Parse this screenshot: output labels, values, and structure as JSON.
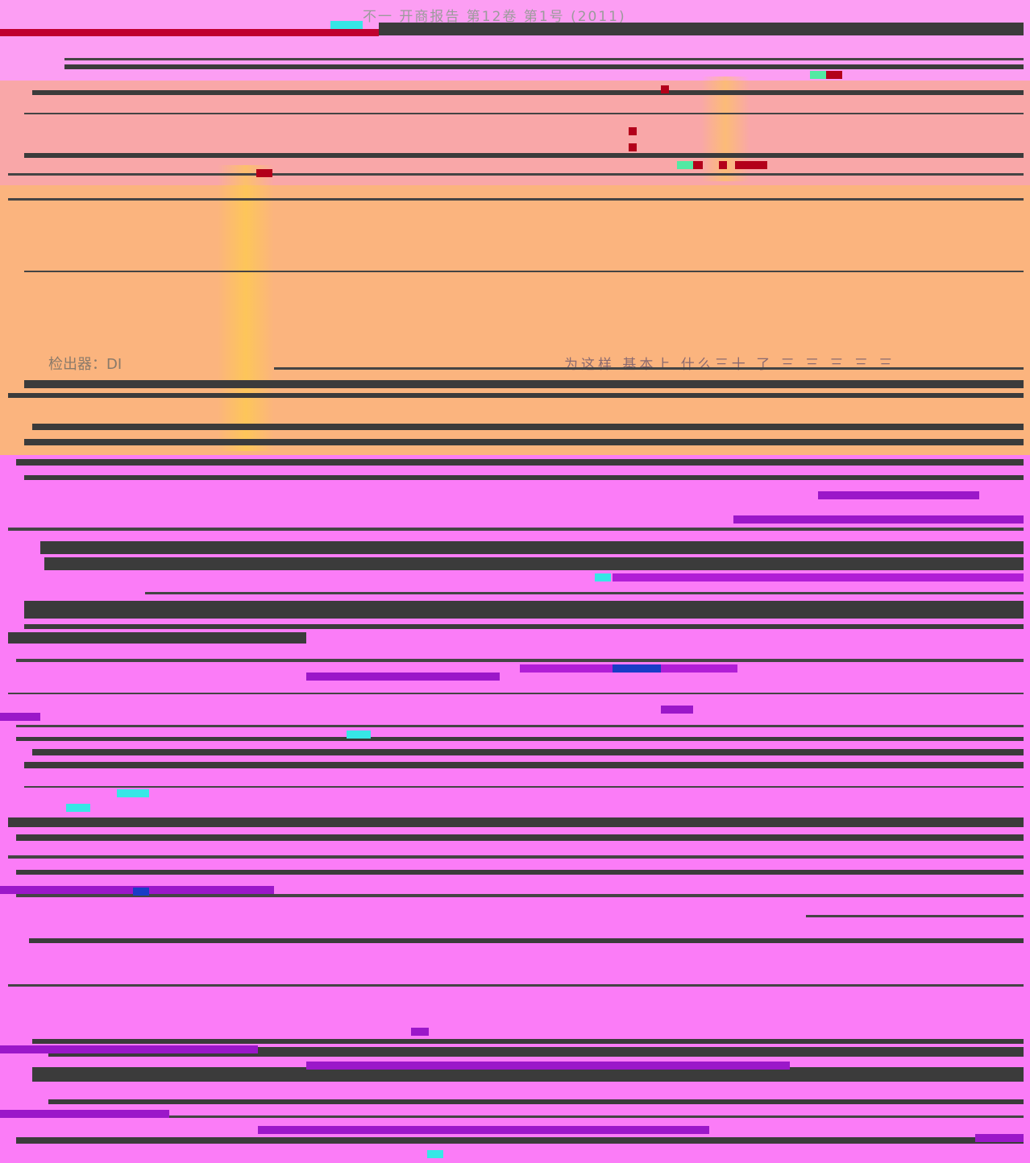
{
  "page": {
    "title": "不一 开商报告 第12卷 第1号 (2011)",
    "label": "检出器：DI",
    "caption": "为这样 基本上 什么三十 了 三 三 三 三 三"
  },
  "colors": {
    "background": "#fb7cf7",
    "header_band": "#fc9ef3",
    "warm_band": "#fbb47e",
    "dark_line": "#3b3b3b",
    "accent_red": "#c0002f",
    "accent_cyan": "#36e7e6"
  }
}
